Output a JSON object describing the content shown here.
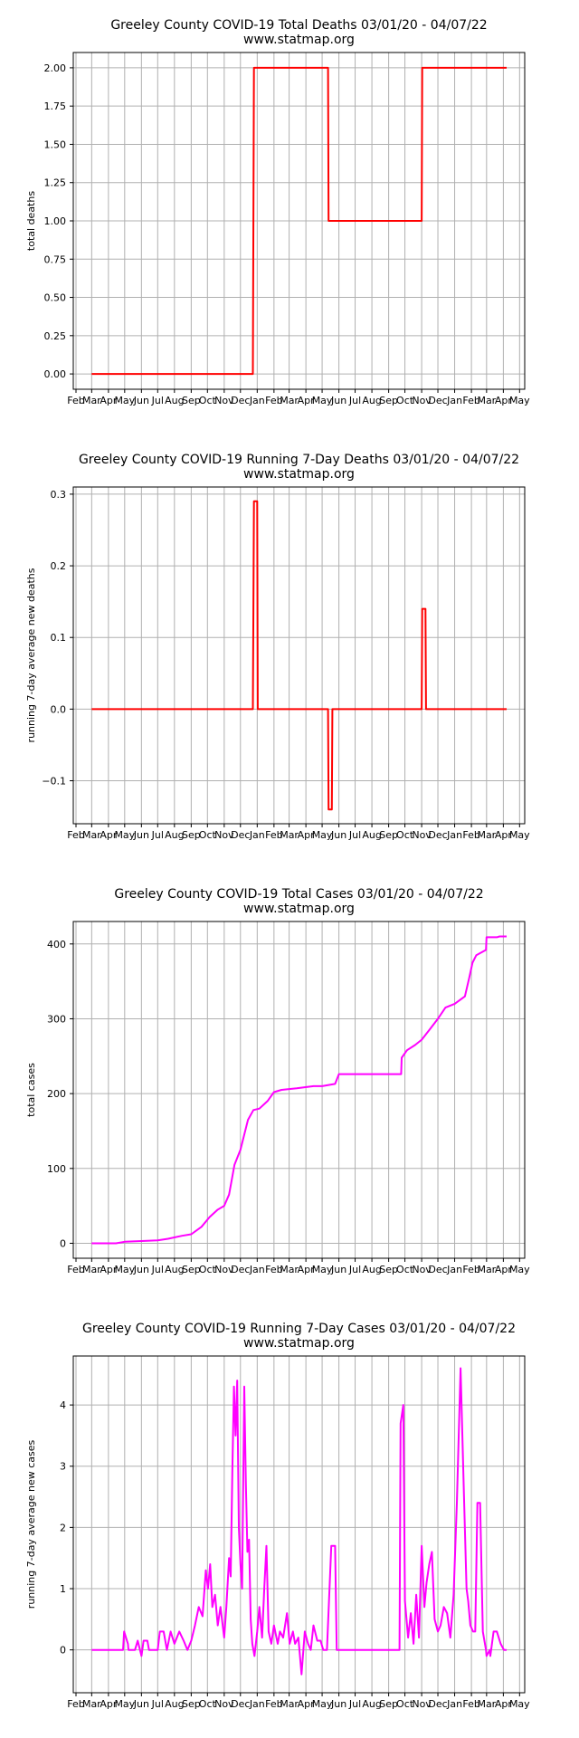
{
  "chart_data": [
    {
      "type": "line",
      "title": "Greeley County COVID-19 Total Deaths 03/01/20 - 04/07/22",
      "subtitle": "www.statmap.org",
      "ylabel": "total deaths",
      "color": "#ff0000",
      "ylim": [
        -0.1,
        2.1
      ],
      "yticks": [
        0.0,
        0.25,
        0.5,
        0.75,
        1.0,
        1.25,
        1.5,
        1.75,
        2.0
      ],
      "ytick_labels": [
        "0.00",
        "0.25",
        "0.50",
        "0.75",
        "1.00",
        "1.25",
        "1.50",
        "1.75",
        "2.00"
      ],
      "x_months": [
        "Feb",
        "Mar",
        "Apr",
        "May",
        "Jun",
        "Jul",
        "Aug",
        "Sep",
        "Oct",
        "Nov",
        "Dec",
        "Jan",
        "Feb",
        "Mar",
        "Apr",
        "May",
        "Jun",
        "Jul",
        "Aug",
        "Sep",
        "Oct",
        "Nov",
        "Dec",
        "Jan",
        "Feb",
        "Mar",
        "Apr",
        "May"
      ],
      "grid": true,
      "series": [
        {
          "x": [
            "2020-03-01",
            "2020-12-24",
            "2020-12-25",
            "2020-12-26",
            "2021-05-12",
            "2021-05-13",
            "2021-11-01",
            "2021-11-02",
            "2022-04-07"
          ],
          "values": [
            0,
            0,
            1,
            2,
            2,
            1,
            1,
            2,
            2
          ]
        }
      ]
    },
    {
      "type": "line",
      "title": "Greeley County COVID-19 Running 7-Day Deaths 03/01/20 - 04/07/22",
      "subtitle": "www.statmap.org",
      "ylabel": "running 7-day average new deaths",
      "color": "#ff0000",
      "ylim": [
        -0.16,
        0.31
      ],
      "yticks": [
        -0.1,
        0.0,
        0.1,
        0.2,
        0.3
      ],
      "ytick_labels": [
        "−0.1",
        "0.0",
        "0.1",
        "0.2",
        "0.3"
      ],
      "x_months": [
        "Feb",
        "Mar",
        "Apr",
        "May",
        "Jun",
        "Jul",
        "Aug",
        "Sep",
        "Oct",
        "Nov",
        "Dec",
        "Jan",
        "Feb",
        "Mar",
        "Apr",
        "May",
        "Jun",
        "Jul",
        "Aug",
        "Sep",
        "Oct",
        "Nov",
        "Dec",
        "Jan",
        "Feb",
        "Mar",
        "Apr",
        "May"
      ],
      "grid": true,
      "series": [
        {
          "x": [
            "2020-03-01",
            "2020-12-24",
            "2020-12-25",
            "2020-12-26",
            "2021-01-01",
            "2021-01-02",
            "2021-05-12",
            "2021-05-13",
            "2021-05-19",
            "2021-05-20",
            "2021-11-01",
            "2021-11-02",
            "2021-11-08",
            "2021-11-09",
            "2022-04-07"
          ],
          "values": [
            0,
            0,
            0.14,
            0.29,
            0.29,
            0,
            0,
            -0.14,
            -0.14,
            0,
            0,
            0.14,
            0.14,
            0,
            0
          ]
        }
      ]
    },
    {
      "type": "line",
      "title": "Greeley County COVID-19 Total Cases 03/01/20 - 04/07/22",
      "subtitle": "www.statmap.org",
      "ylabel": "total cases",
      "color": "#ff00ff",
      "ylim": [
        -20,
        430
      ],
      "yticks": [
        0,
        100,
        200,
        300,
        400
      ],
      "ytick_labels": [
        "0",
        "100",
        "200",
        "300",
        "400"
      ],
      "x_months": [
        "Feb",
        "Mar",
        "Apr",
        "May",
        "Jun",
        "Jul",
        "Aug",
        "Sep",
        "Oct",
        "Nov",
        "Dec",
        "Jan",
        "Feb",
        "Mar",
        "Apr",
        "May",
        "Jun",
        "Jul",
        "Aug",
        "Sep",
        "Oct",
        "Nov",
        "Dec",
        "Jan",
        "Feb",
        "Mar",
        "Apr",
        "May"
      ],
      "grid": true,
      "series": [
        {
          "x": [
            "2020-03-01",
            "2020-04-15",
            "2020-05-01",
            "2020-06-01",
            "2020-07-01",
            "2020-07-20",
            "2020-08-15",
            "2020-09-01",
            "2020-09-20",
            "2020-10-05",
            "2020-10-20",
            "2020-11-01",
            "2020-11-10",
            "2020-11-20",
            "2020-12-01",
            "2020-12-15",
            "2020-12-25",
            "2021-01-05",
            "2021-01-20",
            "2021-02-01",
            "2021-02-15",
            "2021-03-15",
            "2021-04-15",
            "2021-05-01",
            "2021-05-25",
            "2021-06-01",
            "2021-09-24",
            "2021-09-25",
            "2021-10-05",
            "2021-10-20",
            "2021-11-01",
            "2021-11-15",
            "2021-12-01",
            "2021-12-15",
            "2022-01-01",
            "2022-01-20",
            "2022-01-28",
            "2022-02-03",
            "2022-02-10",
            "2022-02-28",
            "2022-03-01",
            "2022-03-20",
            "2022-03-25",
            "2022-04-07"
          ],
          "values": [
            0,
            0,
            2,
            3,
            4,
            6,
            10,
            12,
            22,
            35,
            45,
            50,
            65,
            105,
            125,
            165,
            178,
            180,
            190,
            202,
            205,
            207,
            210,
            210,
            213,
            226,
            226,
            248,
            258,
            265,
            272,
            285,
            300,
            315,
            320,
            330,
            355,
            375,
            385,
            392,
            409,
            409,
            410,
            410
          ]
        }
      ]
    },
    {
      "type": "line",
      "title": "Greeley County COVID-19 Running 7-Day Cases 03/01/20 - 04/07/22",
      "subtitle": "www.statmap.org",
      "ylabel": "running 7-day average new cases",
      "color": "#ff00ff",
      "ylim": [
        -0.7,
        4.8
      ],
      "yticks": [
        0,
        1,
        2,
        3,
        4
      ],
      "ytick_labels": [
        "0",
        "1",
        "2",
        "3",
        "4"
      ],
      "x_months": [
        "Feb",
        "Mar",
        "Apr",
        "May",
        "Jun",
        "Jul",
        "Aug",
        "Sep",
        "Oct",
        "Nov",
        "Dec",
        "Jan",
        "Feb",
        "Mar",
        "Apr",
        "May",
        "Jun",
        "Jul",
        "Aug",
        "Sep",
        "Oct",
        "Nov",
        "Dec",
        "Jan",
        "Feb",
        "Mar",
        "Apr",
        "May"
      ],
      "grid": true,
      "series": [
        {
          "x": [
            "2020-03-01",
            "2020-04-28",
            "2020-04-30",
            "2020-05-07",
            "2020-05-08",
            "2020-05-20",
            "2020-05-25",
            "2020-06-01",
            "2020-06-05",
            "2020-06-12",
            "2020-06-15",
            "2020-06-25",
            "2020-07-01",
            "2020-07-05",
            "2020-07-12",
            "2020-07-18",
            "2020-07-25",
            "2020-08-01",
            "2020-08-10",
            "2020-08-18",
            "2020-08-25",
            "2020-09-01",
            "2020-09-08",
            "2020-09-15",
            "2020-09-22",
            "2020-09-28",
            "2020-10-02",
            "2020-10-06",
            "2020-10-10",
            "2020-10-15",
            "2020-10-20",
            "2020-10-25",
            "2020-11-01",
            "2020-11-05",
            "2020-11-10",
            "2020-11-13",
            "2020-11-16",
            "2020-11-19",
            "2020-11-22",
            "2020-11-25",
            "2020-11-28",
            "2020-12-01",
            "2020-12-04",
            "2020-12-08",
            "2020-12-11",
            "2020-12-14",
            "2020-12-17",
            "2020-12-20",
            "2020-12-23",
            "2020-12-27",
            "2021-01-01",
            "2021-01-05",
            "2021-01-10",
            "2021-01-14",
            "2021-01-18",
            "2021-01-22",
            "2021-01-27",
            "2021-02-01",
            "2021-02-08",
            "2021-02-12",
            "2021-02-18",
            "2021-02-25",
            "2021-03-02",
            "2021-03-08",
            "2021-03-12",
            "2021-03-18",
            "2021-03-24",
            "2021-03-30",
            "2021-04-05",
            "2021-04-10",
            "2021-04-15",
            "2021-04-22",
            "2021-04-28",
            "2021-05-03",
            "2021-05-10",
            "2021-05-18",
            "2021-05-25",
            "2021-05-28",
            "2021-06-05",
            "2021-06-06",
            "2021-09-21",
            "2021-09-23",
            "2021-09-28",
            "2021-10-01",
            "2021-10-07",
            "2021-10-12",
            "2021-10-17",
            "2021-10-22",
            "2021-10-27",
            "2021-11-01",
            "2021-11-06",
            "2021-11-10",
            "2021-11-15",
            "2021-11-20",
            "2021-11-25",
            "2021-12-01",
            "2021-12-06",
            "2021-12-12",
            "2021-12-18",
            "2021-12-24",
            "2021-12-30",
            "2022-01-05",
            "2022-01-12",
            "2022-01-18",
            "2022-01-23",
            "2022-01-26",
            "2022-01-30",
            "2022-02-04",
            "2022-02-08",
            "2022-02-12",
            "2022-02-17",
            "2022-02-22",
            "2022-02-28",
            "2022-03-01",
            "2022-03-07",
            "2022-03-08",
            "2022-03-14",
            "2022-03-20",
            "2022-03-27",
            "2022-04-02",
            "2022-04-07"
          ],
          "values": [
            0,
            0,
            0.3,
            0.1,
            0,
            0,
            0.15,
            -0.1,
            0.15,
            0.15,
            0,
            0,
            0,
            0.3,
            0.3,
            0,
            0.3,
            0.1,
            0.3,
            0.15,
            0,
            0.15,
            0.4,
            0.7,
            0.55,
            1.3,
            1.0,
            1.4,
            0.7,
            0.9,
            0.4,
            0.7,
            0.2,
            0.7,
            1.5,
            1.2,
            2.9,
            4.3,
            3.5,
            4.4,
            2.0,
            1.4,
            1.0,
            4.3,
            2.7,
            1.6,
            1.8,
            0.5,
            0.1,
            -0.1,
            0.3,
            0.7,
            0.2,
            1.0,
            1.7,
            0.3,
            0.1,
            0.4,
            0.1,
            0.3,
            0.2,
            0.6,
            0.1,
            0.3,
            0.1,
            0.2,
            -0.4,
            0.3,
            0.1,
            0,
            0.4,
            0.15,
            0.15,
            0,
            0,
            1.7,
            1.7,
            0,
            0,
            0,
            0,
            3.7,
            4.0,
            0.8,
            0.2,
            0.6,
            0.1,
            0.9,
            0.2,
            1.7,
            0.7,
            1.1,
            1.4,
            1.6,
            0.5,
            0.3,
            0.4,
            0.7,
            0.6,
            0.2,
            0.9,
            2.4,
            4.6,
            2.6,
            1.0,
            0.8,
            0.4,
            0.3,
            0.3,
            2.4,
            2.4,
            0.3,
            0,
            -0.1,
            0,
            -0.1,
            0.3,
            0.3,
            0.1,
            0,
            0
          ]
        }
      ]
    }
  ]
}
